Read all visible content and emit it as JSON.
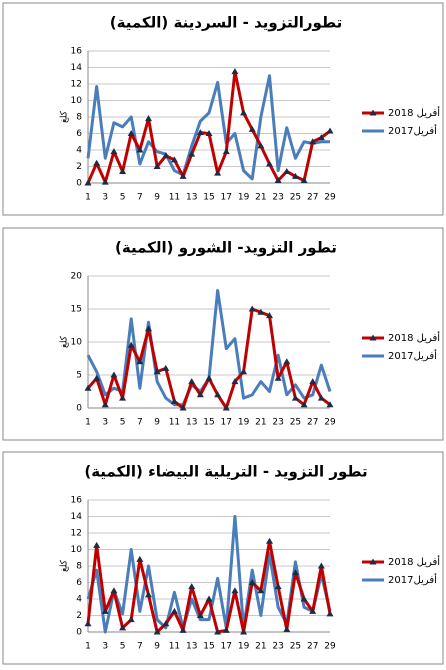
{
  "chart_data": [
    {
      "type": "line",
      "title": "تطورالتزويد - السردينة (الكمية)",
      "y_label": "كلغ",
      "categories": [
        1,
        null,
        3,
        null,
        5,
        null,
        7,
        null,
        9,
        null,
        11,
        null,
        13,
        null,
        15,
        null,
        17,
        null,
        19,
        null,
        21,
        null,
        23,
        null,
        25,
        null,
        27,
        null,
        29
      ],
      "series": [
        {
          "name": "أفريل 2018",
          "color": "#c00000",
          "marker": "triangle",
          "values": [
            0,
            2.4,
            0.1,
            3.8,
            1.4,
            6,
            4,
            7.8,
            2,
            3.3,
            2.8,
            0.8,
            3.5,
            6.1,
            6,
            1.2,
            3.8,
            13.5,
            8.5,
            6.5,
            4.5,
            2.3,
            0.3,
            1.4,
            0.8,
            0.3,
            5,
            5.5,
            6.3
          ]
        },
        {
          "name": "أفريل2017",
          "color": "#4a7ebb",
          "values": [
            3,
            11.7,
            3,
            7.3,
            6.8,
            8,
            2.3,
            5,
            3.8,
            3.5,
            1.5,
            1,
            4.5,
            7.5,
            8.5,
            12.2,
            4.8,
            6,
            1.5,
            0.5,
            8,
            13,
            1.5,
            6.7,
            3,
            5,
            4.8,
            5,
            5
          ]
        }
      ],
      "ylim": [
        0,
        16
      ],
      "yticks": [
        0,
        2,
        4,
        6,
        8,
        10,
        12,
        14,
        16
      ],
      "grid": true,
      "legend": "right"
    },
    {
      "type": "line",
      "title": "تطور التزويد- الشورو (الكمية)",
      "y_label": "كلغ",
      "categories": [
        1,
        null,
        3,
        null,
        5,
        null,
        7,
        null,
        9,
        null,
        11,
        null,
        13,
        null,
        15,
        null,
        17,
        null,
        19,
        null,
        21,
        null,
        23,
        null,
        25,
        null,
        27,
        null,
        29
      ],
      "series": [
        {
          "name": "أفريل 2018",
          "color": "#c00000",
          "marker": "triangle",
          "values": [
            3,
            4.5,
            0.5,
            5,
            1.5,
            9.5,
            7,
            12,
            5.5,
            6,
            1,
            0,
            4,
            2,
            4.5,
            2,
            0,
            4,
            5.5,
            15,
            14.5,
            14,
            4.5,
            7,
            1.5,
            0.5,
            4,
            1.5,
            0.5
          ]
        },
        {
          "name": "أفريل2017",
          "color": "#4a7ebb",
          "values": [
            8,
            5.5,
            2,
            3,
            2.5,
            13.5,
            3,
            13,
            4,
            1.5,
            0.5,
            0.5,
            3.5,
            2.5,
            4.5,
            17.8,
            9,
            10.5,
            1.5,
            2,
            4,
            2.5,
            8,
            2,
            3.5,
            1.5,
            2,
            6.5,
            2.5
          ]
        }
      ],
      "ylim": [
        0,
        20
      ],
      "yticks": [
        0,
        5,
        10,
        15,
        20
      ],
      "grid": true,
      "legend": "right"
    },
    {
      "type": "line",
      "title": "تطور التزويد - التريلية البيضاء (الكمية)",
      "y_label": "كلغ",
      "categories": [
        1,
        null,
        3,
        null,
        5,
        null,
        7,
        null,
        9,
        null,
        11,
        null,
        13,
        null,
        15,
        null,
        17,
        null,
        19,
        null,
        21,
        null,
        23,
        null,
        25,
        null,
        27,
        null,
        29
      ],
      "series": [
        {
          "name": "أفريل 2018",
          "color": "#c00000",
          "marker": "triangle",
          "values": [
            1,
            10.5,
            2.5,
            5,
            0.5,
            1.5,
            8.8,
            4.5,
            0,
            1,
            2.5,
            0.2,
            5.5,
            2,
            4,
            0,
            0.2,
            5,
            0,
            6,
            5,
            11,
            5.5,
            0.3,
            7.2,
            4,
            2.5,
            8,
            2.2
          ]
        },
        {
          "name": "أفريل2017",
          "color": "#4a7ebb",
          "values": [
            4,
            7.5,
            0,
            5,
            2.2,
            10,
            2.5,
            8,
            1.5,
            0.5,
            4.8,
            0.5,
            4,
            1.5,
            1.5,
            6.5,
            0.5,
            14,
            0.5,
            7.5,
            2,
            9.5,
            3,
            1,
            8.5,
            3,
            2.5,
            7,
            2.5
          ]
        }
      ],
      "ylim": [
        0,
        16
      ],
      "yticks": [
        0,
        2,
        4,
        6,
        8,
        10,
        12,
        14,
        16
      ],
      "grid": true,
      "legend": "right"
    }
  ]
}
